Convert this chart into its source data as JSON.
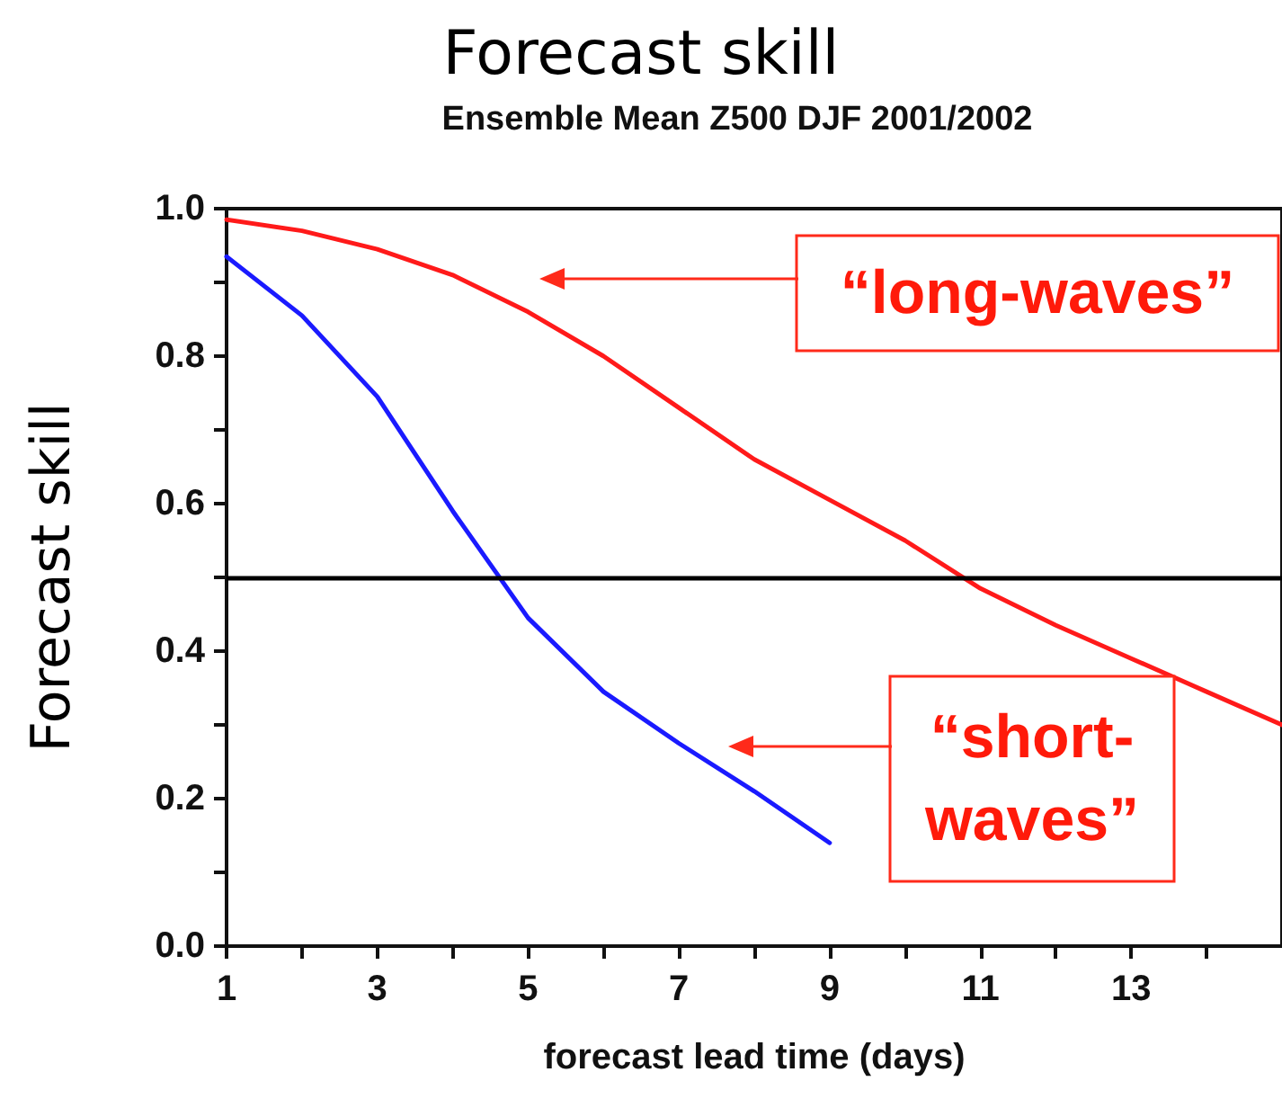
{
  "chart_data": {
    "type": "line",
    "title": "Forecast skill",
    "subtitle": "Ensemble Mean Z500 DJF 2001/2002",
    "xlabel": "forecast lead time (days)",
    "ylabel": "Forecast skill",
    "x": [
      1,
      2,
      3,
      4,
      5,
      6,
      7,
      8,
      9,
      10,
      11,
      12,
      13,
      14,
      15
    ],
    "series": [
      {
        "color": "#ff1a1a",
        "values": [
          0.985,
          0.97,
          0.945,
          0.91,
          0.86,
          0.8,
          0.73,
          0.66,
          0.605,
          0.55,
          0.485,
          0.435,
          0.39,
          0.345,
          0.3
        ]
      },
      {
        "color": "#1a1aff",
        "x": [
          1,
          2,
          3,
          4,
          5,
          6,
          7,
          8,
          9
        ],
        "values": [
          0.935,
          0.855,
          0.745,
          0.59,
          0.445,
          0.345,
          0.275,
          0.21,
          0.14
        ]
      }
    ],
    "xlim": [
      1,
      15
    ],
    "xticks": [
      1,
      {
        "value": 2,
        "label": null
      },
      3,
      {
        "value": 4,
        "label": null
      },
      5,
      {
        "value": 6,
        "label": null
      },
      7,
      {
        "value": 8,
        "label": null
      },
      9,
      {
        "value": 10,
        "label": null
      },
      11,
      {
        "value": 12,
        "label": null
      },
      13,
      {
        "value": 14,
        "label": null
      }
    ],
    "ylim": [
      0,
      1
    ],
    "yticks": [
      {
        "value": 0,
        "label": "0.0"
      },
      {
        "value": 0.1,
        "label": null
      },
      {
        "value": 0.2,
        "label": "0.2"
      },
      {
        "value": 0.3,
        "label": null
      },
      {
        "value": 0.4,
        "label": "0.4"
      },
      {
        "value": 0.5,
        "label": null
      },
      {
        "value": 0.6,
        "label": "0.6"
      },
      {
        "value": 0.7,
        "label": null
      },
      {
        "value": 0.8,
        "label": "0.8"
      },
      {
        "value": 0.9,
        "label": null
      },
      {
        "value": 1,
        "label": "1.0"
      }
    ],
    "ref_lines": [
      {
        "axis": "y",
        "value": 0.5,
        "color": "#000000"
      }
    ],
    "annotations": [
      "“long-waves”",
      "“short-waves”"
    ],
    "grid": false,
    "marker": "none",
    "line_style": "solid"
  }
}
